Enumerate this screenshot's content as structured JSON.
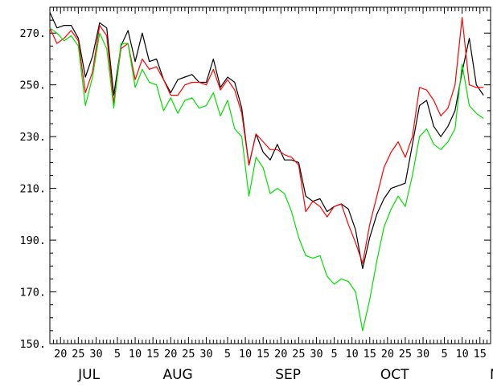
{
  "chart_data": {
    "type": "line",
    "title": "",
    "xlabel": "",
    "ylabel": "",
    "ylim": [
      150,
      280
    ],
    "y_ticks": [
      150,
      170,
      190,
      210,
      230,
      250,
      270
    ],
    "y_tick_labels": [
      "150.",
      "170.",
      "190.",
      "210.",
      "230.",
      "250.",
      "270."
    ],
    "x_start_date": "Jul 17",
    "x_tick_day_labels": [
      {
        "day": 20,
        "label": "20"
      },
      {
        "day": 25,
        "label": "25"
      },
      {
        "day": 30,
        "label": "30"
      },
      {
        "day": 36,
        "label": "5"
      },
      {
        "day": 41,
        "label": "10"
      },
      {
        "day": 46,
        "label": "15"
      },
      {
        "day": 51,
        "label": "20"
      },
      {
        "day": 56,
        "label": "25"
      },
      {
        "day": 61,
        "label": "30"
      },
      {
        "day": 67,
        "label": "5"
      },
      {
        "day": 72,
        "label": "10"
      },
      {
        "day": 77,
        "label": "15"
      },
      {
        "day": 82,
        "label": "20"
      },
      {
        "day": 87,
        "label": "25"
      },
      {
        "day": 92,
        "label": "30"
      },
      {
        "day": 97,
        "label": "5"
      },
      {
        "day": 102,
        "label": "10"
      },
      {
        "day": 107,
        "label": "15"
      },
      {
        "day": 112,
        "label": "20"
      },
      {
        "day": 117,
        "label": "25"
      },
      {
        "day": 122,
        "label": "30"
      },
      {
        "day": 128,
        "label": "5"
      },
      {
        "day": 133,
        "label": "10"
      },
      {
        "day": 138,
        "label": "15"
      }
    ],
    "month_labels": [
      {
        "day": 28,
        "label": "JUL"
      },
      {
        "day": 53,
        "label": "AUG"
      },
      {
        "day": 84,
        "label": "SEP"
      },
      {
        "day": 114,
        "label": "OCT"
      },
      {
        "day": 145,
        "label": "NOV"
      }
    ],
    "grid": false,
    "legend": "none",
    "series": [
      {
        "color": "#000000",
        "x": [
          17,
          19,
          21,
          23,
          25,
          27,
          29,
          31,
          33,
          35,
          37,
          39,
          41,
          43,
          45,
          47,
          49,
          51,
          53,
          55,
          57,
          59,
          61,
          63,
          65,
          67,
          69,
          71,
          73,
          75,
          77,
          79,
          81,
          83,
          85,
          87,
          89,
          91,
          93,
          95,
          97,
          99,
          101,
          103,
          105,
          107,
          109,
          111,
          113,
          115,
          117,
          119,
          121,
          123,
          125,
          127,
          129,
          131,
          133,
          135,
          137,
          139
        ],
        "values": [
          278,
          272,
          273,
          273,
          268,
          253,
          261,
          274,
          272,
          246,
          265,
          271,
          259,
          270,
          259,
          260,
          252,
          247,
          252,
          253,
          254,
          251,
          251,
          260,
          249,
          253,
          251,
          241,
          219,
          231,
          224,
          221,
          227,
          221,
          221,
          220,
          207,
          205,
          206,
          201,
          203,
          204,
          202,
          194,
          179,
          191,
          200,
          206,
          210,
          211,
          212,
          227,
          242,
          244,
          234,
          230,
          234,
          240,
          255,
          268,
          250,
          246
        ]
      },
      {
        "color": "#ff0000",
        "x": [
          17,
          19,
          21,
          23,
          25,
          27,
          29,
          31,
          33,
          35,
          37,
          39,
          41,
          43,
          45,
          47,
          49,
          51,
          53,
          55,
          57,
          59,
          61,
          63,
          65,
          67,
          69,
          71,
          73,
          75,
          77,
          79,
          81,
          83,
          85,
          87,
          89,
          91,
          93,
          95,
          97,
          99,
          101,
          103,
          105,
          107,
          109,
          111,
          113,
          115,
          117,
          119,
          121,
          123,
          125,
          127,
          129,
          131,
          133,
          135,
          137,
          139
        ],
        "values": [
          272,
          266,
          268,
          271,
          267,
          247,
          255,
          273,
          269,
          243,
          264,
          266,
          252,
          260,
          256,
          257,
          252,
          246,
          246,
          250,
          251,
          251,
          250,
          256,
          248,
          252,
          248,
          239,
          219,
          231,
          228,
          225,
          225,
          223,
          222,
          219,
          201,
          205,
          203,
          199,
          203,
          204,
          196,
          189,
          181,
          196,
          207,
          218,
          224,
          228,
          222,
          230,
          249,
          248,
          244,
          238,
          241,
          250,
          276,
          250,
          249,
          249
        ]
      },
      {
        "color": "#00e000",
        "x": [
          17,
          19,
          21,
          23,
          25,
          27,
          29,
          31,
          33,
          35,
          37,
          39,
          41,
          43,
          45,
          47,
          49,
          51,
          53,
          55,
          57,
          59,
          61,
          63,
          65,
          67,
          69,
          71,
          73,
          75,
          77,
          79,
          81,
          83,
          85,
          87,
          89,
          91,
          93,
          95,
          97,
          99,
          101,
          103,
          105,
          107,
          109,
          111,
          113,
          115,
          117,
          119,
          121,
          123,
          125,
          127,
          129,
          131,
          133,
          135,
          137,
          139
        ],
        "values": [
          272,
          270,
          267,
          269,
          265,
          242,
          253,
          270,
          264,
          241,
          266,
          266,
          249,
          256,
          251,
          250,
          240,
          245,
          239,
          244,
          245,
          241,
          242,
          247,
          238,
          244,
          233,
          230,
          207,
          222,
          218,
          208,
          210,
          208,
          201,
          191,
          184,
          183,
          184,
          176,
          173,
          175,
          174,
          170,
          155,
          167,
          182,
          195,
          202,
          207,
          203,
          215,
          230,
          233,
          227,
          225,
          228,
          233,
          258,
          242,
          239,
          237
        ]
      }
    ]
  }
}
